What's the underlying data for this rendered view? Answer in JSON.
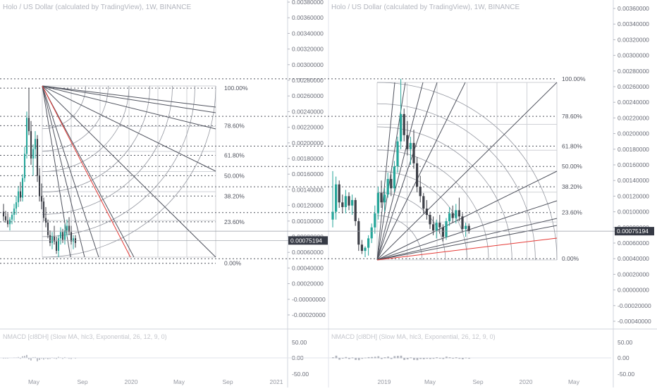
{
  "panels": [
    {
      "title": "Holo / US Dollar (calculated by TradingView), 1W, BINANCE",
      "price_axis": [
        "0.00380000",
        "0.00360000",
        "0.00340000",
        "0.00320000",
        "0.00300000",
        "0.00280000",
        "0.00260000",
        "0.00240000",
        "0.00220000",
        "0.00200000",
        "0.00180000",
        "0.00160000",
        "0.00140000",
        "0.00120000",
        "0.00100000",
        "0.00080000",
        "0.00060000",
        "0.00040000",
        "0.00020000",
        "-0.00000000",
        "-0.00020000"
      ],
      "fib_levels": [
        "100.00%",
        "78.60%",
        "61.80%",
        "50.00%",
        "38.20%",
        "23.60%",
        "0.00%"
      ],
      "last_price": "0.00075194",
      "x_axis": [
        "May",
        "Sep",
        "2020",
        "May",
        "Sep",
        "2021"
      ],
      "indicator_label": "NMACD [cl8DH] (Slow MA, hlc3, Exponential, 26, 12, 9, 0)",
      "indicator_axis": [
        "50.00",
        "0.00",
        "-50.00"
      ]
    },
    {
      "title": "Holo / US Dollar (calculated by TradingView), 1W, BINANCE",
      "price_axis": [
        "0.00360000",
        "0.00340000",
        "0.00320000",
        "0.00300000",
        "0.00280000",
        "0.00260000",
        "0.00240000",
        "0.00220000",
        "0.00200000",
        "0.00180000",
        "0.00160000",
        "0.00140000",
        "0.00120000",
        "0.00100000",
        "0.00080000",
        "0.00060000",
        "0.00040000",
        "0.00020000",
        "0.00000000",
        "-0.00020000",
        "-0.00040000"
      ],
      "fib_levels": [
        "100.00%",
        "78.60%",
        "61.80%",
        "50.00%",
        "38.20%",
        "23.60%",
        "0.00%"
      ],
      "last_price": "0.00075194",
      "x_axis": [
        "2019",
        "May",
        "Sep",
        "2020",
        "May"
      ],
      "indicator_label": "NMACD [cl8DH] (Slow MA, hlc3, Exponential, 26, 12, 9, 0)",
      "indicator_axis": [
        "50.00",
        "0.00",
        "-50.00"
      ]
    }
  ],
  "colors": {
    "up": "#26a69a",
    "down": "#3d3f47",
    "fib_line": "#50535e",
    "red_line": "#e53935",
    "badge": "#363a45",
    "grid": "#cfd1d6"
  },
  "chart_data": [
    {
      "type": "candlestick",
      "title": "Holo / US Dollar (calculated by TradingView), 1W, BINANCE",
      "timeframe": "1W",
      "ylim": [
        -0.0003,
        0.0038
      ],
      "x_ticks": [
        "May",
        "Sep",
        "2020",
        "May",
        "Sep",
        "2021"
      ],
      "fib_retracement": {
        "high": 0.0027,
        "low": 0.00046,
        "levels": {
          "100.00%": 0.0027,
          "78.60%": 0.00222,
          "61.80%": 0.00184,
          "50.00%": 0.00158,
          "38.20%": 0.00132,
          "23.60%": 0.00099,
          "0.00%": 0.00046
        }
      },
      "last_price": 0.00075194,
      "ohlc": [
        [
          0.00112,
          0.00122,
          0.001,
          0.00106
        ],
        [
          0.00106,
          0.00113,
          0.00098,
          0.00101
        ],
        [
          0.00101,
          0.0011,
          0.00092,
          0.00096
        ],
        [
          0.00096,
          0.00105,
          0.00088,
          0.00102
        ],
        [
          0.00102,
          0.00112,
          0.00096,
          0.00108
        ],
        [
          0.00108,
          0.00122,
          0.001,
          0.00116
        ],
        [
          0.00116,
          0.00132,
          0.00108,
          0.00124
        ],
        [
          0.00124,
          0.00145,
          0.00118,
          0.00138
        ],
        [
          0.00138,
          0.0015,
          0.00125,
          0.0013
        ],
        [
          0.0013,
          0.0016,
          0.00125,
          0.00155
        ],
        [
          0.00155,
          0.00195,
          0.0015,
          0.00186
        ],
        [
          0.00186,
          0.0024,
          0.0018,
          0.00232
        ],
        [
          0.00232,
          0.0027,
          0.0021,
          0.00215
        ],
        [
          0.00215,
          0.00228,
          0.00172,
          0.0018
        ],
        [
          0.0018,
          0.00198,
          0.00158,
          0.00192
        ],
        [
          0.00192,
          0.00215,
          0.0018,
          0.00205
        ],
        [
          0.00205,
          0.0021,
          0.0015,
          0.00158
        ],
        [
          0.00158,
          0.00168,
          0.00125,
          0.00132
        ],
        [
          0.00132,
          0.00148,
          0.00115,
          0.00125
        ],
        [
          0.00125,
          0.0013,
          0.001,
          0.00104
        ],
        [
          0.00104,
          0.00118,
          0.00092,
          0.00098
        ],
        [
          0.00098,
          0.00102,
          0.00078,
          0.00082
        ],
        [
          0.00082,
          0.00088,
          0.00068,
          0.00072
        ],
        [
          0.00072,
          0.00086,
          0.00064,
          0.0008
        ],
        [
          0.0008,
          0.00094,
          0.0007,
          0.00074
        ],
        [
          0.00074,
          0.0008,
          0.00058,
          0.00062
        ],
        [
          0.00062,
          0.00082,
          0.00054,
          0.00078
        ],
        [
          0.00078,
          0.00092,
          0.0007,
          0.00086
        ],
        [
          0.00086,
          0.0009,
          0.00072,
          0.00076
        ],
        [
          0.00076,
          0.00096,
          0.0007,
          0.00088
        ],
        [
          0.00088,
          0.00102,
          0.0008,
          0.00094
        ],
        [
          0.00094,
          0.00105,
          0.00082,
          0.00086
        ],
        [
          0.00086,
          0.00094,
          0.0007,
          0.00074
        ],
        [
          0.00074,
          0.00082,
          0.00064,
          0.00078
        ],
        [
          0.00078,
          0.00082,
          0.00066,
          0.00072
        ]
      ]
    },
    {
      "type": "candlestick",
      "title": "Holo / US Dollar (calculated by TradingView), 1W, BINANCE",
      "timeframe": "1W",
      "ylim": [
        -0.00045,
        0.0038
      ],
      "x_ticks": [
        "2019",
        "May",
        "Sep",
        "2020",
        "May"
      ],
      "fib_retracement": {
        "high": 0.0027,
        "low": 0.0004,
        "levels": {
          "100.00%": 0.0027,
          "78.60%": 0.00222,
          "61.80%": 0.00184,
          "50.00%": 0.00158,
          "38.20%": 0.00132,
          "23.60%": 0.00099,
          "0.00%": 0.0004
        }
      },
      "last_price": 0.00075194,
      "ohlc": [
        [
          0.0009,
          0.00152,
          0.0008,
          0.001
        ],
        [
          0.001,
          0.00145,
          0.0009,
          0.00135
        ],
        [
          0.00135,
          0.0014,
          0.00105,
          0.00112
        ],
        [
          0.00112,
          0.00122,
          0.00098,
          0.00106
        ],
        [
          0.00106,
          0.00128,
          0.00098,
          0.0012
        ],
        [
          0.0012,
          0.00125,
          0.00102,
          0.00108
        ],
        [
          0.00108,
          0.00122,
          0.00096,
          0.00115
        ],
        [
          0.00115,
          0.00118,
          0.00082,
          0.00088
        ],
        [
          0.00088,
          0.00092,
          0.0005,
          0.00058
        ],
        [
          0.00058,
          0.00064,
          0.00046,
          0.0005
        ],
        [
          0.0005,
          0.00056,
          0.00042,
          0.00054
        ],
        [
          0.00054,
          0.0007,
          0.00044,
          0.00066
        ],
        [
          0.00066,
          0.00085,
          0.0006,
          0.0008
        ],
        [
          0.0008,
          0.00108,
          0.00072,
          0.00098
        ],
        [
          0.00098,
          0.00132,
          0.0009,
          0.00124
        ],
        [
          0.00124,
          0.0014,
          0.00105,
          0.00112
        ],
        [
          0.00112,
          0.0013,
          0.001,
          0.00122
        ],
        [
          0.00122,
          0.0015,
          0.00118,
          0.00142
        ],
        [
          0.00142,
          0.00148,
          0.0012,
          0.0013
        ],
        [
          0.0013,
          0.00165,
          0.00125,
          0.00158
        ],
        [
          0.00158,
          0.00196,
          0.0015,
          0.0019
        ],
        [
          0.0019,
          0.0027,
          0.0018,
          0.00225
        ],
        [
          0.00225,
          0.00232,
          0.0019,
          0.00198
        ],
        [
          0.00198,
          0.00216,
          0.00172,
          0.0018
        ],
        [
          0.0018,
          0.00196,
          0.0016,
          0.00188
        ],
        [
          0.00188,
          0.00205,
          0.00155,
          0.00162
        ],
        [
          0.00162,
          0.0017,
          0.00125,
          0.00132
        ],
        [
          0.00132,
          0.00146,
          0.00112,
          0.0012
        ],
        [
          0.0012,
          0.00124,
          0.00098,
          0.00104
        ],
        [
          0.00104,
          0.00115,
          0.0009,
          0.00096
        ],
        [
          0.00096,
          0.001,
          0.00078,
          0.00084
        ],
        [
          0.00084,
          0.00094,
          0.0007,
          0.00076
        ],
        [
          0.00076,
          0.0009,
          0.00066,
          0.00086
        ],
        [
          0.00086,
          0.00096,
          0.00072,
          0.0008
        ],
        [
          0.0008,
          0.00084,
          0.00062,
          0.00068
        ],
        [
          0.00068,
          0.00092,
          0.00064,
          0.00088
        ],
        [
          0.00088,
          0.00106,
          0.00082,
          0.00098
        ],
        [
          0.00098,
          0.00108,
          0.00086,
          0.00092
        ],
        [
          0.00092,
          0.0011,
          0.00085,
          0.00102
        ],
        [
          0.00102,
          0.00118,
          0.00088,
          0.00094
        ],
        [
          0.00094,
          0.00098,
          0.00074,
          0.00078
        ],
        [
          0.00078,
          0.00086,
          0.00068,
          0.00082
        ],
        [
          0.00082,
          0.00085,
          0.00072,
          0.00075
        ]
      ]
    }
  ]
}
